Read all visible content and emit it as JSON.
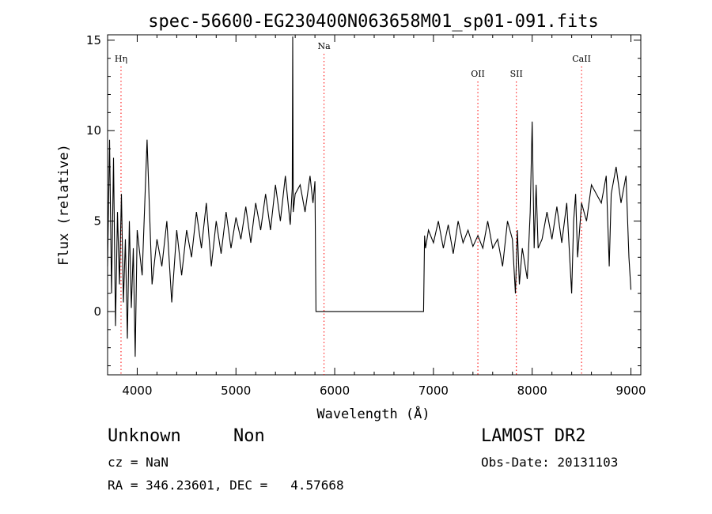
{
  "chart_data": {
    "type": "line",
    "title": "spec-56600-EG230400N063658M01_sp01-091.fits",
    "xlabel": "Wavelength (Å)",
    "ylabel": "Flux (relative)",
    "xlim": [
      3700,
      9100
    ],
    "ylim": [
      -3.5,
      15.3
    ],
    "xticks": [
      4000,
      5000,
      6000,
      7000,
      8000,
      9000
    ],
    "yticks": [
      0,
      5,
      10,
      15
    ],
    "grid": false,
    "line_color": "#000000",
    "marker_color": "#ff0000",
    "markers": [
      {
        "label": "Hη",
        "x": 3836
      },
      {
        "label": "Na",
        "x": 5892
      },
      {
        "label": "OII",
        "x": 7450
      },
      {
        "label": "SII",
        "x": 7840
      },
      {
        "label": "CaII",
        "x": 8500
      }
    ],
    "series": [
      {
        "x": [
          3700,
          3720,
          3740,
          3760,
          3780,
          3800,
          3820,
          3840,
          3860,
          3880,
          3900,
          3920,
          3940,
          3960,
          3980,
          4000,
          4050,
          4100,
          4150,
          4200,
          4250,
          4300,
          4350,
          4400,
          4450,
          4500,
          4550,
          4600,
          4650,
          4700,
          4750,
          4800,
          4850,
          4900,
          4950,
          5000,
          5050,
          5100,
          5150,
          5200,
          5250,
          5300,
          5350,
          5400,
          5450,
          5500,
          5550,
          5570,
          5575,
          5580,
          5600,
          5650,
          5700,
          5750,
          5780,
          5800,
          5810,
          6000,
          6500,
          6900,
          6910,
          6920,
          6950,
          7000,
          7050,
          7100,
          7150,
          7200,
          7250,
          7300,
          7350,
          7400,
          7450,
          7500,
          7550,
          7600,
          7650,
          7700,
          7750,
          7800,
          7830,
          7850,
          7870,
          7900,
          7950,
          7980,
          8000,
          8020,
          8040,
          8060,
          8100,
          8150,
          8200,
          8250,
          8300,
          8350,
          8400,
          8420,
          8440,
          8460,
          8500,
          8550,
          8600,
          8650,
          8700,
          8750,
          8780,
          8800,
          8850,
          8900,
          8950,
          8980,
          9000
        ],
        "y": [
          2.5,
          9.5,
          1.0,
          8.5,
          -0.8,
          5.5,
          1.5,
          6.5,
          0.5,
          4.0,
          -1.5,
          5.0,
          0.2,
          3.5,
          -2.5,
          4.5,
          2.0,
          9.5,
          1.5,
          4.0,
          2.5,
          5.0,
          0.5,
          4.5,
          2.0,
          4.5,
          3.0,
          5.5,
          3.5,
          6.0,
          2.5,
          5.0,
          3.2,
          5.5,
          3.5,
          5.2,
          4.0,
          5.8,
          3.8,
          6.0,
          4.5,
          6.5,
          4.5,
          7.0,
          5.0,
          7.5,
          4.8,
          6.8,
          15.2,
          5.5,
          6.5,
          7.0,
          5.5,
          7.5,
          6.0,
          7.2,
          0.0,
          0.0,
          0.0,
          0.0,
          4.2,
          3.5,
          4.5,
          3.8,
          5.0,
          3.5,
          4.8,
          3.2,
          5.0,
          3.8,
          4.5,
          3.6,
          4.2,
          3.5,
          5.0,
          3.5,
          4.0,
          2.5,
          5.0,
          4.0,
          1.0,
          4.5,
          1.5,
          3.5,
          1.8,
          5.5,
          10.5,
          3.5,
          7.0,
          3.5,
          4.0,
          5.5,
          4.0,
          5.8,
          3.8,
          6.0,
          1.0,
          5.0,
          6.5,
          3.0,
          6.0,
          5.0,
          7.0,
          6.5,
          6.0,
          7.5,
          2.5,
          6.5,
          8.0,
          6.0,
          7.5,
          3.0,
          1.2
        ]
      }
    ]
  },
  "info": {
    "class_label": "Unknown",
    "subclass_label": "Non",
    "cz_text": "cz = NaN",
    "coords_text": "RA = 346.23601, DEC =   4.57668",
    "survey_label": "LAMOST DR2",
    "obs_date_text": "Obs-Date: 20131103"
  }
}
